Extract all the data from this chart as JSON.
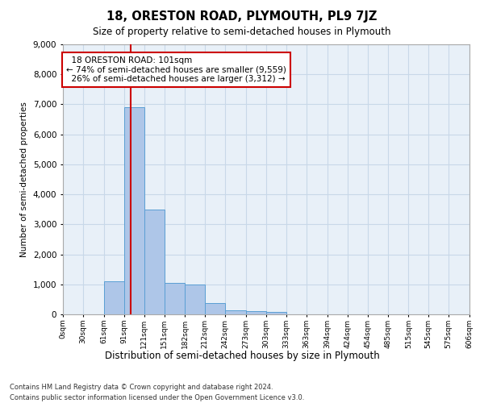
{
  "title_line1": "18, ORESTON ROAD, PLYMOUTH, PL9 7JZ",
  "title_line2": "Size of property relative to semi-detached houses in Plymouth",
  "xlabel": "Distribution of semi-detached houses by size in Plymouth",
  "ylabel": "Number of semi-detached properties",
  "bin_edges": [
    0,
    30,
    61,
    91,
    121,
    151,
    182,
    212,
    242,
    273,
    303,
    333,
    363,
    394,
    424,
    454,
    485,
    515,
    545,
    575,
    606
  ],
  "bar_heights": [
    0,
    0,
    1100,
    6900,
    3500,
    1050,
    1000,
    380,
    140,
    100,
    70,
    0,
    0,
    0,
    0,
    0,
    0,
    0,
    0,
    0
  ],
  "bar_color": "#aec6e8",
  "bar_edge_color": "#5a9fd4",
  "property_size": 101,
  "property_label": "18 ORESTON ROAD: 101sqm",
  "pct_smaller": 74,
  "pct_smaller_count": "9,559",
  "pct_larger": 26,
  "pct_larger_count": "3,312",
  "vline_color": "#cc0000",
  "annotation_box_color": "#cc0000",
  "ylim": [
    0,
    9000
  ],
  "yticks": [
    0,
    1000,
    2000,
    3000,
    4000,
    5000,
    6000,
    7000,
    8000,
    9000
  ],
  "grid_color": "#c8d8e8",
  "bg_color": "#e8f0f8",
  "footer_line1": "Contains HM Land Registry data © Crown copyright and database right 2024.",
  "footer_line2": "Contains public sector information licensed under the Open Government Licence v3.0.",
  "tick_labels": [
    "0sqm",
    "30sqm",
    "61sqm",
    "91sqm",
    "121sqm",
    "151sqm",
    "182sqm",
    "212sqm",
    "242sqm",
    "273sqm",
    "303sqm",
    "333sqm",
    "363sqm",
    "394sqm",
    "424sqm",
    "454sqm",
    "485sqm",
    "515sqm",
    "545sqm",
    "575sqm",
    "606sqm"
  ]
}
